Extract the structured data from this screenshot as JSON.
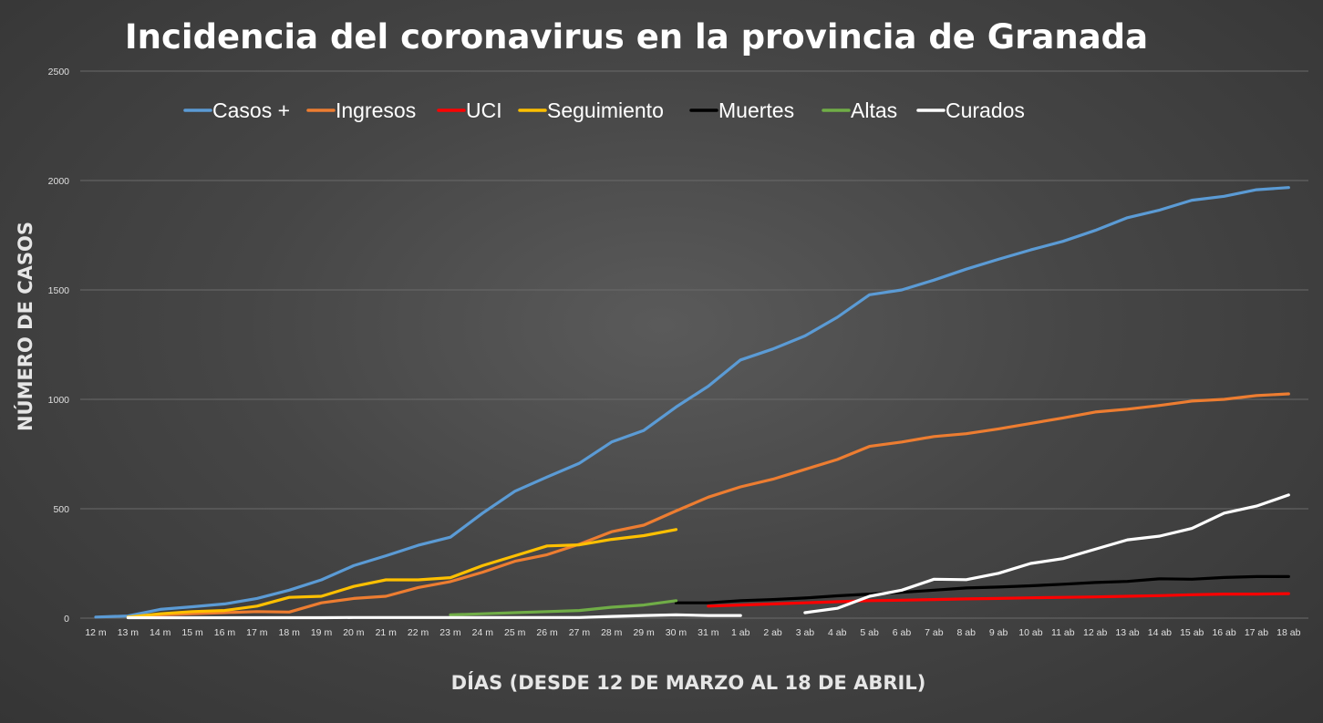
{
  "chart_data": {
    "type": "line",
    "title": "Incidencia del coronavirus en la provincia de Granada",
    "xlabel": "DÍAS (DESDE 12 DE MARZO AL 18 DE ABRIL)",
    "ylabel": "NÚMERO DE CASOS",
    "ylim": [
      0,
      2500
    ],
    "yticks": [
      0,
      500,
      1000,
      1500,
      2000,
      2500
    ],
    "grid": true,
    "legend_position": "top",
    "categories": [
      "12 m",
      "13 m",
      "14 m",
      "15 m",
      "16 m",
      "17 m",
      "18 m",
      "19 m",
      "20 m",
      "21 m",
      "22 m",
      "23 m",
      "24 m",
      "25 m",
      "26 m",
      "27 m",
      "28 m",
      "29 m",
      "30 m",
      "31 m",
      "1 ab",
      "2 ab",
      "3 ab",
      "4 ab",
      "5 ab",
      "6 ab",
      "7 ab",
      "8 ab",
      "9 ab",
      "10 ab",
      "11 ab",
      "12 ab",
      "13 ab",
      "14 ab",
      "15 ab",
      "16 ab",
      "17 ab",
      "18 ab"
    ],
    "series": [
      {
        "name": "Casos +",
        "color": "#5b9bd5",
        "values": [
          5,
          10,
          40,
          52,
          65,
          90,
          128,
          175,
          240,
          285,
          333,
          370,
          480,
          580,
          645,
          708,
          805,
          858,
          965,
          1060,
          1180,
          1230,
          1290,
          1375,
          1478,
          1500,
          1545,
          1595,
          1640,
          1683,
          1722,
          1772,
          1830,
          1865,
          1910,
          1928,
          1958,
          1968
        ]
      },
      {
        "name": "Ingresos",
        "color": "#ed7d31",
        "values": [
          null,
          5,
          15,
          20,
          25,
          30,
          28,
          70,
          90,
          100,
          140,
          167,
          210,
          260,
          290,
          338,
          395,
          425,
          490,
          553,
          600,
          635,
          680,
          725,
          785,
          805,
          830,
          843,
          865,
          890,
          915,
          942,
          955,
          972,
          992,
          1000,
          1017,
          1025
        ]
      },
      {
        "name": "UCI",
        "color": "#ff0000",
        "values": [
          null,
          null,
          null,
          null,
          null,
          null,
          null,
          null,
          null,
          null,
          null,
          null,
          null,
          null,
          null,
          null,
          null,
          null,
          null,
          55,
          60,
          65,
          70,
          75,
          80,
          82,
          85,
          88,
          90,
          93,
          95,
          97,
          100,
          103,
          107,
          110,
          110,
          112
        ]
      },
      {
        "name": "Seguimiento",
        "color": "#ffc000",
        "values": [
          null,
          5,
          20,
          30,
          35,
          55,
          95,
          100,
          145,
          175,
          175,
          185,
          240,
          285,
          330,
          335,
          360,
          377,
          405,
          null,
          null,
          null,
          null,
          null,
          null,
          null,
          null,
          null,
          null,
          null,
          null,
          null,
          null,
          null,
          null,
          null,
          null,
          null
        ]
      },
      {
        "name": "Muertes",
        "color": "#000000",
        "values": [
          null,
          null,
          null,
          null,
          null,
          null,
          null,
          null,
          null,
          null,
          null,
          null,
          null,
          null,
          null,
          null,
          null,
          null,
          70,
          70,
          80,
          85,
          92,
          102,
          110,
          118,
          128,
          138,
          142,
          148,
          155,
          163,
          168,
          180,
          178,
          186,
          190,
          190
        ]
      },
      {
        "name": "Altas",
        "color": "#70ad47",
        "values": [
          null,
          null,
          null,
          null,
          null,
          null,
          null,
          null,
          null,
          null,
          null,
          15,
          20,
          25,
          30,
          35,
          50,
          60,
          80,
          null,
          null,
          null,
          null,
          null,
          null,
          null,
          null,
          null,
          null,
          null,
          null,
          null,
          null,
          null,
          null,
          null,
          null,
          null
        ]
      },
      {
        "name": "Curados",
        "color": "#ffffff",
        "values": [
          null,
          2,
          2,
          2,
          2,
          2,
          2,
          2,
          3,
          3,
          3,
          3,
          3,
          3,
          3,
          3,
          8,
          12,
          15,
          12,
          12,
          null,
          25,
          45,
          100,
          128,
          178,
          176,
          205,
          250,
          272,
          315,
          358,
          375,
          410,
          480,
          512,
          563
        ]
      }
    ]
  }
}
